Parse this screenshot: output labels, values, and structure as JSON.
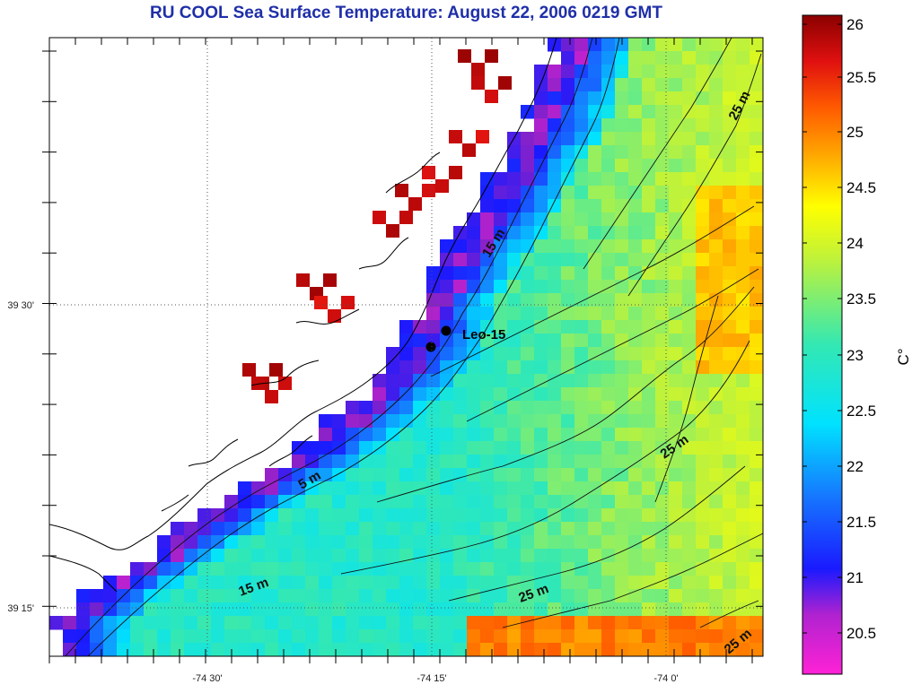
{
  "title": "RU COOL  Sea Surface Temperature:  August 22, 2006 0219 GMT",
  "axes": {
    "lon_tick_labels": [
      "-74 30'",
      "-74 15'",
      "-74 0'"
    ],
    "lat_tick_labels": [
      "39 30'",
      "39 15'"
    ]
  },
  "colorbar": {
    "unit": "C°",
    "ticks": [
      "26",
      "25.5",
      "25",
      "24.5",
      "24",
      "23.5",
      "23",
      "22.5",
      "22",
      "21.5",
      "21",
      "20.5"
    ],
    "colormap": [
      "#ff22d6",
      "#8a22c8",
      "#1a1aff",
      "#1677ff",
      "#00e2ff",
      "#33e8b3",
      "#bff23a",
      "#ffff00",
      "#ffb000",
      "#ff5a00",
      "#e01010",
      "#8b0000"
    ]
  },
  "contours": {
    "labels": [
      "25 m",
      "15 m",
      "5 m",
      "15 m",
      "25 m",
      "25 m",
      "25 m"
    ]
  },
  "stations": [
    {
      "name": "Leo-15"
    }
  ]
}
